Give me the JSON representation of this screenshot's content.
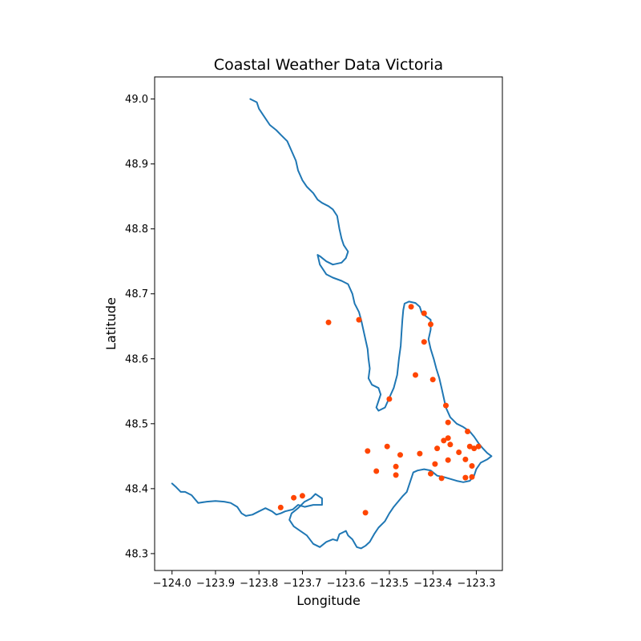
{
  "chart_data": {
    "type": "scatter",
    "title": "Coastal Weather Data Victoria",
    "xlabel": "Longitude",
    "ylabel": "Latitude",
    "xlim": [
      -124.04,
      -123.24
    ],
    "ylim": [
      48.274,
      49.034
    ],
    "xticks": [
      -124.0,
      -123.9,
      -123.8,
      -123.7,
      -123.6,
      -123.5,
      -123.4,
      -123.3
    ],
    "xtick_labels": [
      "−124.0",
      "−123.9",
      "−123.8",
      "−123.7",
      "−123.6",
      "−123.5",
      "−123.4",
      "−123.3"
    ],
    "yticks": [
      48.3,
      48.4,
      48.5,
      48.6,
      48.7,
      48.8,
      48.9,
      49.0
    ],
    "ytick_labels": [
      "48.3",
      "48.4",
      "48.5",
      "48.6",
      "48.7",
      "48.8",
      "48.9",
      "49.0"
    ],
    "grid": false,
    "colors": {
      "coastline": "#1f77b4",
      "points": "#ff4500"
    },
    "coastline": [
      [
        -123.82,
        49.0
      ],
      [
        -123.805,
        48.995
      ],
      [
        -123.8,
        48.985
      ],
      [
        -123.79,
        48.975
      ],
      [
        -123.775,
        48.96
      ],
      [
        -123.76,
        48.952
      ],
      [
        -123.75,
        48.945
      ],
      [
        -123.735,
        48.935
      ],
      [
        -123.725,
        48.92
      ],
      [
        -123.715,
        48.905
      ],
      [
        -123.71,
        48.89
      ],
      [
        -123.7,
        48.875
      ],
      [
        -123.69,
        48.865
      ],
      [
        -123.675,
        48.855
      ],
      [
        -123.665,
        48.845
      ],
      [
        -123.655,
        48.84
      ],
      [
        -123.64,
        48.835
      ],
      [
        -123.63,
        48.83
      ],
      [
        -123.62,
        48.82
      ],
      [
        -123.615,
        48.8
      ],
      [
        -123.61,
        48.785
      ],
      [
        -123.605,
        48.775
      ],
      [
        -123.595,
        48.765
      ],
      [
        -123.6,
        48.755
      ],
      [
        -123.61,
        48.748
      ],
      [
        -123.63,
        48.745
      ],
      [
        -123.645,
        48.75
      ],
      [
        -123.66,
        48.758
      ],
      [
        -123.665,
        48.76
      ],
      [
        -123.66,
        48.745
      ],
      [
        -123.645,
        48.73
      ],
      [
        -123.63,
        48.725
      ],
      [
        -123.61,
        48.72
      ],
      [
        -123.595,
        48.715
      ],
      [
        -123.585,
        48.7
      ],
      [
        -123.58,
        48.685
      ],
      [
        -123.57,
        48.672
      ],
      [
        -123.565,
        48.66
      ],
      [
        -123.56,
        48.645
      ],
      [
        -123.555,
        48.63
      ],
      [
        -123.55,
        48.615
      ],
      [
        -123.548,
        48.6
      ],
      [
        -123.545,
        48.585
      ],
      [
        -123.548,
        48.57
      ],
      [
        -123.54,
        48.56
      ],
      [
        -123.525,
        48.555
      ],
      [
        -123.52,
        48.545
      ],
      [
        -123.525,
        48.535
      ],
      [
        -123.53,
        48.525
      ],
      [
        -123.525,
        48.52
      ],
      [
        -123.51,
        48.525
      ],
      [
        -123.5,
        48.54
      ],
      [
        -123.49,
        48.555
      ],
      [
        -123.482,
        48.575
      ],
      [
        -123.478,
        48.6
      ],
      [
        -123.474,
        48.62
      ],
      [
        -123.472,
        48.64
      ],
      [
        -123.47,
        48.66
      ],
      [
        -123.468,
        48.675
      ],
      [
        -123.465,
        48.685
      ],
      [
        -123.455,
        48.688
      ],
      [
        -123.44,
        48.686
      ],
      [
        -123.43,
        48.68
      ],
      [
        -123.425,
        48.67
      ],
      [
        -123.415,
        48.665
      ],
      [
        -123.405,
        48.66
      ],
      [
        -123.405,
        48.645
      ],
      [
        -123.41,
        48.63
      ],
      [
        -123.405,
        48.615
      ],
      [
        -123.398,
        48.6
      ],
      [
        -123.392,
        48.585
      ],
      [
        -123.385,
        48.57
      ],
      [
        -123.38,
        48.555
      ],
      [
        -123.375,
        48.54
      ],
      [
        -123.37,
        48.525
      ],
      [
        -123.36,
        48.51
      ],
      [
        -123.345,
        48.5
      ],
      [
        -123.33,
        48.495
      ],
      [
        -123.315,
        48.488
      ],
      [
        -123.305,
        48.48
      ],
      [
        -123.295,
        48.47
      ],
      [
        -123.285,
        48.462
      ],
      [
        -123.275,
        48.455
      ],
      [
        -123.265,
        48.45
      ],
      [
        -123.275,
        48.445
      ],
      [
        -123.29,
        48.44
      ],
      [
        -123.3,
        48.43
      ],
      [
        -123.305,
        48.42
      ],
      [
        -123.315,
        48.412
      ],
      [
        -123.33,
        48.41
      ],
      [
        -123.345,
        48.412
      ],
      [
        -123.36,
        48.415
      ],
      [
        -123.375,
        48.418
      ],
      [
        -123.39,
        48.42
      ],
      [
        -123.405,
        48.428
      ],
      [
        -123.42,
        48.43
      ],
      [
        -123.435,
        48.428
      ],
      [
        -123.445,
        48.425
      ],
      [
        -123.45,
        48.415
      ],
      [
        -123.455,
        48.405
      ],
      [
        -123.46,
        48.395
      ],
      [
        -123.47,
        48.388
      ],
      [
        -123.48,
        48.38
      ],
      [
        -123.49,
        48.372
      ],
      [
        -123.5,
        48.362
      ],
      [
        -123.51,
        48.35
      ],
      [
        -123.525,
        48.34
      ],
      [
        -123.535,
        48.33
      ],
      [
        -123.545,
        48.318
      ],
      [
        -123.555,
        48.312
      ],
      [
        -123.565,
        48.308
      ],
      [
        -123.575,
        48.31
      ],
      [
        -123.585,
        48.322
      ],
      [
        -123.595,
        48.328
      ],
      [
        -123.6,
        48.335
      ],
      [
        -123.615,
        48.33
      ],
      [
        -123.62,
        48.32
      ],
      [
        -123.63,
        48.322
      ],
      [
        -123.645,
        48.318
      ],
      [
        -123.66,
        48.31
      ],
      [
        -123.675,
        48.315
      ],
      [
        -123.69,
        48.328
      ],
      [
        -123.705,
        48.335
      ],
      [
        -123.72,
        48.342
      ],
      [
        -123.73,
        48.352
      ],
      [
        -123.725,
        48.362
      ],
      [
        -123.71,
        48.37
      ],
      [
        -123.695,
        48.38
      ],
      [
        -123.68,
        48.385
      ],
      [
        -123.67,
        48.392
      ],
      [
        -123.655,
        48.385
      ],
      [
        -123.655,
        48.375
      ],
      [
        -123.675,
        48.375
      ],
      [
        -123.695,
        48.372
      ],
      [
        -123.71,
        48.375
      ],
      [
        -123.722,
        48.368
      ],
      [
        -123.74,
        48.365
      ],
      [
        -123.75,
        48.362
      ],
      [
        -123.76,
        48.36
      ],
      [
        -123.77,
        48.365
      ],
      [
        -123.785,
        48.37
      ],
      [
        -123.8,
        48.365
      ],
      [
        -123.815,
        48.36
      ],
      [
        -123.83,
        48.358
      ],
      [
        -123.84,
        48.362
      ],
      [
        -123.85,
        48.372
      ],
      [
        -123.865,
        48.378
      ],
      [
        -123.88,
        48.38
      ],
      [
        -123.9,
        48.381
      ],
      [
        -123.92,
        48.38
      ],
      [
        -123.94,
        48.378
      ],
      [
        -123.955,
        48.39
      ],
      [
        -123.97,
        48.395
      ],
      [
        -123.98,
        48.395
      ],
      [
        -123.99,
        48.402
      ],
      [
        -124.0,
        48.408
      ]
    ],
    "points": [
      [
        -123.45,
        48.68
      ],
      [
        -123.42,
        48.67
      ],
      [
        -123.405,
        48.653
      ],
      [
        -123.64,
        48.656
      ],
      [
        -123.57,
        48.66
      ],
      [
        -123.42,
        48.626
      ],
      [
        -123.44,
        48.575
      ],
      [
        -123.4,
        48.568
      ],
      [
        -123.5,
        48.538
      ],
      [
        -123.37,
        48.528
      ],
      [
        -123.365,
        48.502
      ],
      [
        -123.32,
        48.488
      ],
      [
        -123.365,
        48.478
      ],
      [
        -123.375,
        48.474
      ],
      [
        -123.36,
        48.468
      ],
      [
        -123.505,
        48.465
      ],
      [
        -123.39,
        48.462
      ],
      [
        -123.315,
        48.465
      ],
      [
        -123.305,
        48.462
      ],
      [
        -123.295,
        48.465
      ],
      [
        -123.55,
        48.458
      ],
      [
        -123.34,
        48.456
      ],
      [
        -123.43,
        48.454
      ],
      [
        -123.475,
        48.452
      ],
      [
        -123.325,
        48.445
      ],
      [
        -123.365,
        48.444
      ],
      [
        -123.395,
        48.438
      ],
      [
        -123.485,
        48.434
      ],
      [
        -123.31,
        48.435
      ],
      [
        -123.53,
        48.427
      ],
      [
        -123.405,
        48.423
      ],
      [
        -123.485,
        48.421
      ],
      [
        -123.38,
        48.416
      ],
      [
        -123.325,
        48.417
      ],
      [
        -123.31,
        48.418
      ],
      [
        -123.7,
        48.389
      ],
      [
        -123.72,
        48.386
      ],
      [
        -123.75,
        48.371
      ],
      [
        -123.555,
        48.363
      ]
    ]
  }
}
